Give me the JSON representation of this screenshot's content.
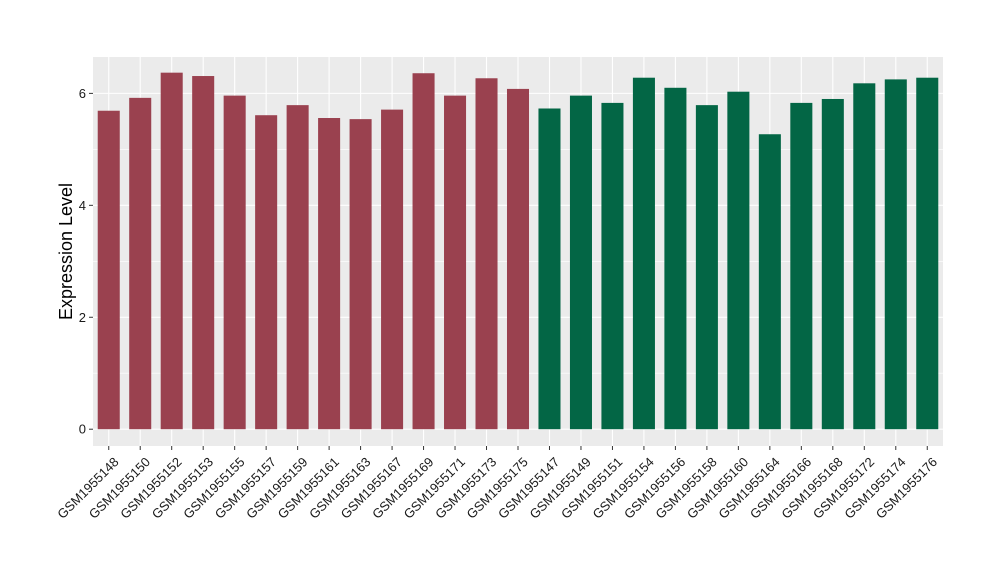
{
  "chart_data": {
    "type": "bar",
    "title": "",
    "xlabel": "",
    "ylabel": "Expression Level",
    "ylim": [
      -0.3,
      6.65
    ],
    "yticks": [
      0,
      2,
      4,
      6
    ],
    "grid": true,
    "categories": [
      "GSM1955148",
      "GSM1955150",
      "GSM1955152",
      "GSM1955153",
      "GSM1955155",
      "GSM1955157",
      "GSM1955159",
      "GSM1955161",
      "GSM1955163",
      "GSM1955167",
      "GSM1955169",
      "GSM1955171",
      "GSM1955173",
      "GSM1955175",
      "GSM1955147",
      "GSM1955149",
      "GSM1955151",
      "GSM1955154",
      "GSM1955156",
      "GSM1955158",
      "GSM1955160",
      "GSM1955164",
      "GSM1955166",
      "GSM1955168",
      "GSM1955172",
      "GSM1955174",
      "GSM1955176"
    ],
    "values": [
      5.69,
      5.92,
      6.37,
      6.31,
      5.96,
      5.61,
      5.79,
      5.56,
      5.54,
      5.71,
      6.36,
      5.96,
      6.27,
      6.08,
      5.73,
      5.96,
      5.83,
      6.28,
      6.1,
      5.79,
      6.03,
      5.27,
      5.83,
      5.9,
      6.18,
      6.25,
      6.28
    ],
    "groups": [
      0,
      0,
      0,
      0,
      0,
      0,
      0,
      0,
      0,
      0,
      0,
      0,
      0,
      0,
      1,
      1,
      1,
      1,
      1,
      1,
      1,
      1,
      1,
      1,
      1,
      1,
      1
    ],
    "group_colors": [
      "#9a414f",
      "#036645"
    ],
    "panel_background": "#ebebeb",
    "grid_color": "#ffffff"
  }
}
